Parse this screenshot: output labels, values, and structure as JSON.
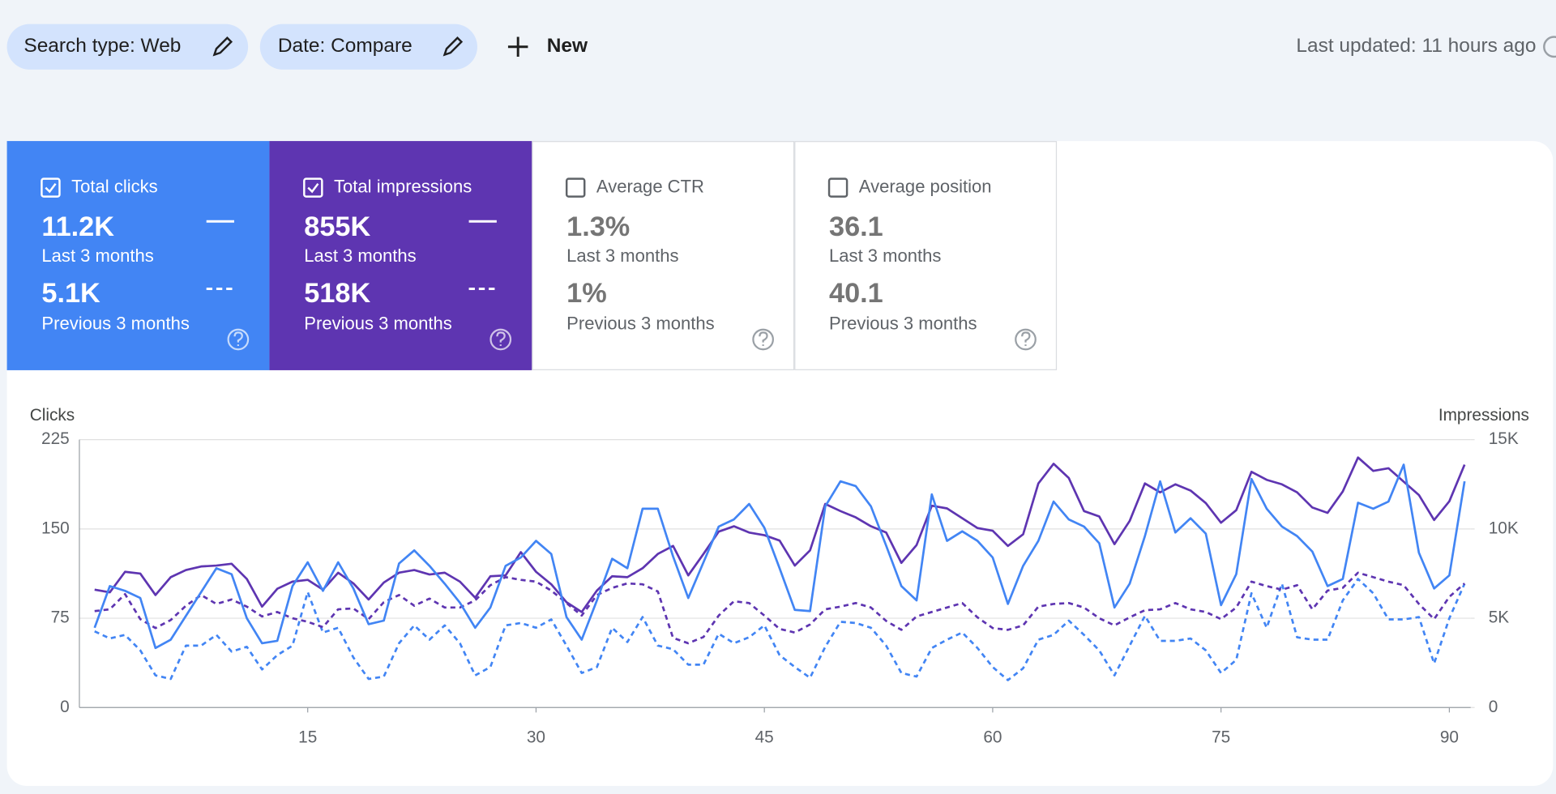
{
  "toolbar": {
    "filters": [
      "Search type: Web",
      "Date: Compare"
    ],
    "new_button": "New",
    "last_updated": "Last updated: 11 hours ago"
  },
  "metric_cards": [
    {
      "label": "Total clicks",
      "current_value": "11.2K",
      "current_period": "Last 3 months",
      "previous_value": "5.1K",
      "previous_period": "Previous 3 months",
      "checked": true,
      "color": "#4285f4"
    },
    {
      "label": "Total impressions",
      "current_value": "855K",
      "current_period": "Last 3 months",
      "previous_value": "518K",
      "previous_period": "Previous 3 months",
      "checked": true,
      "color": "#5e35b1"
    },
    {
      "label": "Average CTR",
      "current_value": "1.3%",
      "current_period": "Last 3 months",
      "previous_value": "1%",
      "previous_period": "Previous 3 months",
      "checked": false,
      "color": "#00897b"
    },
    {
      "label": "Average position",
      "current_value": "36.1",
      "current_period": "Last 3 months",
      "previous_value": "40.1",
      "previous_period": "Previous 3 months",
      "checked": false,
      "color": "#e8710a"
    }
  ],
  "chart_data": {
    "type": "line",
    "y_label": "Clicks",
    "y2_label": "Impressions",
    "grid": true,
    "x": [
      1,
      2,
      3,
      4,
      5,
      6,
      7,
      8,
      9,
      10,
      11,
      12,
      13,
      14,
      15,
      16,
      17,
      18,
      19,
      20,
      21,
      22,
      23,
      24,
      25,
      26,
      27,
      28,
      29,
      30,
      31,
      32,
      33,
      34,
      35,
      36,
      37,
      38,
      39,
      40,
      41,
      42,
      43,
      44,
      45,
      46,
      47,
      48,
      49,
      50,
      51,
      52,
      53,
      54,
      55,
      56,
      57,
      58,
      59,
      60,
      61,
      62,
      63,
      64,
      65,
      66,
      67,
      68,
      69,
      70,
      71,
      72,
      73,
      74,
      75,
      76,
      77,
      78,
      79,
      80,
      81,
      82,
      83,
      84,
      85,
      86,
      87,
      88,
      89,
      90,
      91
    ],
    "xlim": [
      0,
      91.4
    ],
    "xticks": [
      15,
      30,
      45,
      60,
      75,
      90
    ],
    "ylim": [
      0,
      225
    ],
    "yticks": [
      0,
      75,
      150,
      225
    ],
    "y2lim": [
      0,
      15000
    ],
    "y2ticks": [
      0,
      {
        "value": 5000,
        "label": "5K"
      },
      {
        "value": 10000,
        "label": "10K"
      },
      {
        "value": 15000,
        "label": "15K"
      }
    ],
    "series": [
      {
        "color": "#4285f4",
        "style": "dashed",
        "axis": "y",
        "values": [
          64,
          58,
          61,
          48,
          27,
          24,
          52,
          52,
          61,
          47,
          51,
          32,
          44,
          52,
          97,
          63,
          67,
          42,
          24,
          26,
          54,
          69,
          57,
          69,
          54,
          27,
          34,
          69,
          71,
          67,
          74,
          52,
          29,
          34,
          67,
          55,
          76,
          52,
          49,
          36,
          36,
          62,
          54,
          59,
          69,
          44,
          34,
          25,
          51,
          72,
          71,
          67,
          52,
          29,
          26,
          50,
          57,
          63,
          50,
          34,
          23,
          33,
          57,
          61,
          73,
          61,
          48,
          27,
          52,
          77,
          56,
          56,
          58,
          48,
          29,
          40,
          96,
          67,
          104,
          59,
          57,
          57,
          90,
          108,
          96,
          74,
          74,
          76,
          37,
          75,
          104
        ]
      },
      {
        "color": "#5e35b1",
        "style": "dashed",
        "axis": "y2",
        "values": [
          5400,
          5500,
          6350,
          4950,
          4450,
          4900,
          5700,
          6300,
          5800,
          6050,
          5650,
          5100,
          5350,
          5000,
          4800,
          4500,
          5500,
          5550,
          4950,
          5900,
          6300,
          5700,
          6100,
          5600,
          5600,
          6000,
          6850,
          7300,
          7150,
          7050,
          6550,
          5850,
          5150,
          6300,
          6700,
          6950,
          6900,
          6500,
          3900,
          3600,
          3950,
          5150,
          5950,
          5850,
          5150,
          4400,
          4200,
          4650,
          5500,
          5650,
          5850,
          5600,
          4850,
          4350,
          5100,
          5350,
          5600,
          5850,
          5050,
          4450,
          4350,
          4600,
          5650,
          5800,
          5850,
          5600,
          5000,
          4600,
          5050,
          5450,
          5500,
          5850,
          5500,
          5350,
          4950,
          5600,
          7050,
          6800,
          6600,
          6850,
          5500,
          6550,
          6700,
          7550,
          7300,
          7050,
          6850,
          5800,
          4950,
          6200,
          6950
        ]
      },
      {
        "color": "#5e35b1",
        "style": "solid",
        "axis": "y2",
        "values": [
          6600,
          6450,
          7600,
          7500,
          6300,
          7300,
          7700,
          7900,
          7950,
          8050,
          7200,
          5650,
          6650,
          7050,
          7150,
          6600,
          7550,
          6950,
          6050,
          7000,
          7550,
          7700,
          7450,
          7550,
          7050,
          6150,
          7350,
          7400,
          8700,
          7600,
          6900,
          5900,
          5350,
          6550,
          7350,
          7300,
          7800,
          8600,
          9050,
          7400,
          8600,
          9850,
          10150,
          9800,
          9650,
          9350,
          7950,
          8800,
          11400,
          11000,
          10650,
          10150,
          9800,
          8100,
          9100,
          11300,
          11150,
          10600,
          10050,
          9900,
          9050,
          9700,
          12550,
          13650,
          12850,
          11000,
          10700,
          9150,
          10450,
          12550,
          12050,
          12500,
          12150,
          11450,
          10350,
          11050,
          13200,
          12750,
          12500,
          12050,
          11200,
          10900,
          12100,
          14000,
          13250,
          13400,
          12650,
          11900,
          10500,
          11550,
          13600
        ]
      },
      {
        "color": "#4285f4",
        "style": "solid",
        "axis": "y",
        "values": [
          67,
          102,
          98,
          92,
          50,
          57,
          77,
          97,
          117,
          112,
          75,
          54,
          56,
          102,
          122,
          98,
          122,
          100,
          70,
          73,
          121,
          132,
          119,
          104,
          88,
          67,
          84,
          119,
          126,
          140,
          129,
          76,
          57,
          90,
          125,
          117,
          167,
          167,
          127,
          92,
          122,
          152,
          158,
          171,
          151,
          117,
          82,
          81,
          169,
          190,
          186,
          169,
          136,
          102,
          90,
          179,
          140,
          148,
          140,
          126,
          87,
          119,
          140,
          173,
          158,
          152,
          138,
          84,
          104,
          144,
          190,
          147,
          159,
          146,
          86,
          112,
          192,
          167,
          152,
          144,
          131,
          102,
          108,
          172,
          167,
          173,
          204,
          130,
          100,
          111,
          190
        ]
      }
    ]
  }
}
